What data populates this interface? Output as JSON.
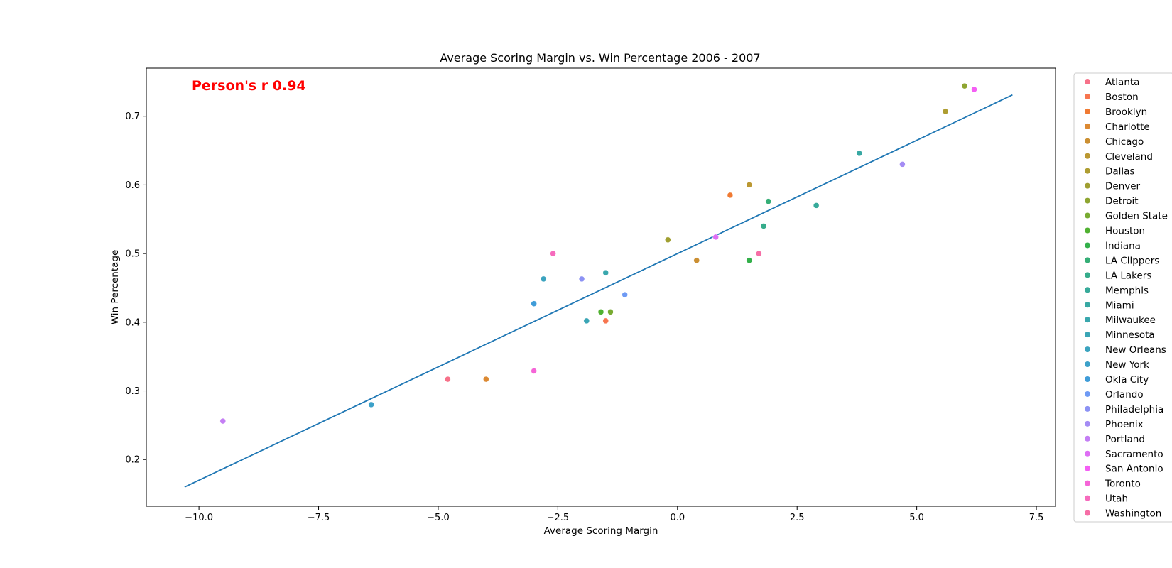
{
  "chart_data": {
    "type": "scatter",
    "title": "Average Scoring Margin vs. Win Percentage 2006 - 2007",
    "xlabel": "Average Scoring Margin",
    "ylabel": "Win Percentage",
    "xlim": [
      -11.1,
      7.9
    ],
    "ylim": [
      0.132,
      0.77
    ],
    "x_ticks": [
      -10.0,
      -7.5,
      -5.0,
      -2.5,
      0.0,
      2.5,
      5.0,
      7.5
    ],
    "x_tick_labels": [
      "−10.0",
      "−7.5",
      "−5.0",
      "−2.5",
      "0.0",
      "2.5",
      "5.0",
      "7.5"
    ],
    "y_ticks": [
      0.2,
      0.3,
      0.4,
      0.5,
      0.6,
      0.7
    ],
    "y_tick_labels": [
      "0.2",
      "0.3",
      "0.4",
      "0.5",
      "0.6",
      "0.7"
    ],
    "grid": false,
    "legend_position": "right, outside plot",
    "annotation": {
      "text": "Person's r 0.94",
      "color": "#ff0000"
    },
    "regression_line": {
      "x": [
        -10.3,
        7.0
      ],
      "y": [
        0.16,
        0.731
      ],
      "color": "#1f77b4"
    },
    "series": [
      {
        "name": "Atlanta",
        "color": "#f77189",
        "x": -4.8,
        "y": 0.317
      },
      {
        "name": "Boston",
        "color": "#f7754f",
        "x": -1.5,
        "y": 0.402
      },
      {
        "name": "Brooklyn",
        "color": "#f07a32",
        "x": 1.1,
        "y": 0.585
      },
      {
        "name": "Charlotte",
        "color": "#dc8932",
        "x": -4.0,
        "y": 0.317
      },
      {
        "name": "Chicago",
        "color": "#cb8f32",
        "x": 0.4,
        "y": 0.49
      },
      {
        "name": "Cleveland",
        "color": "#bb9832",
        "x": 1.5,
        "y": 0.6
      },
      {
        "name": "Dallas",
        "color": "#ae9d31",
        "x": 5.6,
        "y": 0.707
      },
      {
        "name": "Denver",
        "color": "#a09f31",
        "x": -0.2,
        "y": 0.52
      },
      {
        "name": "Detroit",
        "color": "#8ea531",
        "x": 6.0,
        "y": 0.744
      },
      {
        "name": "Golden State",
        "color": "#78ab31",
        "x": -1.4,
        "y": 0.415
      },
      {
        "name": "Houston",
        "color": "#50b131",
        "x": -1.6,
        "y": 0.415
      },
      {
        "name": "Indiana",
        "color": "#33b04a",
        "x": 1.5,
        "y": 0.49
      },
      {
        "name": "LA Clippers",
        "color": "#35ae76",
        "x": 1.9,
        "y": 0.576
      },
      {
        "name": "LA Lakers",
        "color": "#36ac8b",
        "x": 1.8,
        "y": 0.54
      },
      {
        "name": "Memphis",
        "color": "#37aa9a",
        "x": 2.9,
        "y": 0.57
      },
      {
        "name": "Miami",
        "color": "#38a8a3",
        "x": 3.8,
        "y": 0.646
      },
      {
        "name": "Milwaukee",
        "color": "#39a7ad",
        "x": -1.5,
        "y": 0.472
      },
      {
        "name": "Minnesota",
        "color": "#3aa5b5",
        "x": -1.9,
        "y": 0.402
      },
      {
        "name": "New Orleans",
        "color": "#3ba3bf",
        "x": -2.8,
        "y": 0.463
      },
      {
        "name": "New York",
        "color": "#3ca1c9",
        "x": -6.4,
        "y": 0.28
      },
      {
        "name": "Okla City",
        "color": "#3f9cd8",
        "x": -3.0,
        "y": 0.427
      },
      {
        "name": "Orlando",
        "color": "#6e9af4",
        "x": -1.1,
        "y": 0.44
      },
      {
        "name": "Philadelphia",
        "color": "#8c92f4",
        "x": -2.0,
        "y": 0.463
      },
      {
        "name": "Phoenix",
        "color": "#a48cf4",
        "x": 4.7,
        "y": 0.63
      },
      {
        "name": "Portland",
        "color": "#c47ef4",
        "x": -9.5,
        "y": 0.256
      },
      {
        "name": "Sacramento",
        "color": "#de6ef4",
        "x": 0.8,
        "y": 0.524
      },
      {
        "name": "San Antonio",
        "color": "#f45ff4",
        "x": 6.2,
        "y": 0.739
      },
      {
        "name": "Toronto",
        "color": "#f565d7",
        "x": -3.0,
        "y": 0.329
      },
      {
        "name": "Utah",
        "color": "#f66bbd",
        "x": -2.6,
        "y": 0.5
      },
      {
        "name": "Washington",
        "color": "#f66ea6",
        "x": 1.7,
        "y": 0.5
      }
    ]
  }
}
